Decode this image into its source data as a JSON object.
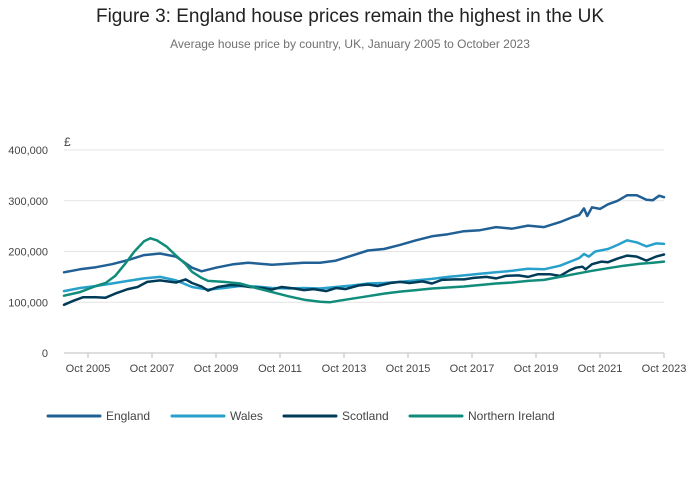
{
  "chart_data": {
    "type": "line",
    "title": "Figure 3: England house prices remain the highest in the UK",
    "subtitle": "Average house price by country, UK, January 2005 to October 2023",
    "ylabel": "£",
    "ylim": [
      0,
      400000
    ],
    "xlim": [
      2005.0,
      2023.75
    ],
    "yticks": [
      {
        "value": 0,
        "label": "0"
      },
      {
        "value": 100000,
        "label": "100,000"
      },
      {
        "value": 200000,
        "label": "200,000"
      },
      {
        "value": 300000,
        "label": "300,000"
      },
      {
        "value": 400000,
        "label": "400,000"
      }
    ],
    "xticks": [
      {
        "value": 2005.75,
        "label": "Oct 2005"
      },
      {
        "value": 2007.75,
        "label": "Oct 2007"
      },
      {
        "value": 2009.75,
        "label": "Oct 2009"
      },
      {
        "value": 2011.75,
        "label": "Oct 2011"
      },
      {
        "value": 2013.75,
        "label": "Oct 2013"
      },
      {
        "value": 2015.75,
        "label": "Oct 2015"
      },
      {
        "value": 2017.75,
        "label": "Oct 2017"
      },
      {
        "value": 2019.75,
        "label": "Oct 2019"
      },
      {
        "value": 2021.75,
        "label": "Oct 2021"
      },
      {
        "value": 2023.75,
        "label": "Oct 2023"
      }
    ],
    "series": [
      {
        "name": "England",
        "color": "#206095",
        "points": [
          [
            2005.0,
            159000
          ],
          [
            2005.5,
            165000
          ],
          [
            2006.0,
            169000
          ],
          [
            2006.5,
            175000
          ],
          [
            2007.0,
            183000
          ],
          [
            2007.5,
            193000
          ],
          [
            2008.0,
            196000
          ],
          [
            2008.5,
            190000
          ],
          [
            2009.0,
            168000
          ],
          [
            2009.3,
            161000
          ],
          [
            2009.75,
            168000
          ],
          [
            2010.3,
            175000
          ],
          [
            2010.75,
            178000
          ],
          [
            2011.5,
            174000
          ],
          [
            2012.0,
            176000
          ],
          [
            2012.5,
            178000
          ],
          [
            2013.0,
            178000
          ],
          [
            2013.5,
            182000
          ],
          [
            2014.0,
            192000
          ],
          [
            2014.5,
            202000
          ],
          [
            2015.0,
            205000
          ],
          [
            2015.5,
            213000
          ],
          [
            2016.0,
            222000
          ],
          [
            2016.5,
            230000
          ],
          [
            2017.0,
            234000
          ],
          [
            2017.5,
            240000
          ],
          [
            2018.0,
            242000
          ],
          [
            2018.5,
            248000
          ],
          [
            2019.0,
            245000
          ],
          [
            2019.5,
            251000
          ],
          [
            2020.0,
            248000
          ],
          [
            2020.5,
            258000
          ],
          [
            2020.9,
            268000
          ],
          [
            2021.1,
            272000
          ],
          [
            2021.25,
            285000
          ],
          [
            2021.35,
            270000
          ],
          [
            2021.5,
            287000
          ],
          [
            2021.75,
            284000
          ],
          [
            2022.0,
            293000
          ],
          [
            2022.3,
            300000
          ],
          [
            2022.6,
            311000
          ],
          [
            2022.9,
            311000
          ],
          [
            2023.2,
            302000
          ],
          [
            2023.4,
            301000
          ],
          [
            2023.6,
            310000
          ],
          [
            2023.75,
            307000
          ]
        ]
      },
      {
        "name": "Wales",
        "color": "#27a0cc",
        "points": [
          [
            2005.0,
            122000
          ],
          [
            2005.5,
            128000
          ],
          [
            2006.0,
            132000
          ],
          [
            2006.5,
            137000
          ],
          [
            2007.0,
            142000
          ],
          [
            2007.5,
            147000
          ],
          [
            2008.0,
            150000
          ],
          [
            2008.5,
            143000
          ],
          [
            2009.0,
            130000
          ],
          [
            2009.5,
            125000
          ],
          [
            2010.0,
            128000
          ],
          [
            2010.5,
            132000
          ],
          [
            2011.0,
            131000
          ],
          [
            2011.5,
            128000
          ],
          [
            2012.0,
            127000
          ],
          [
            2012.5,
            128000
          ],
          [
            2013.0,
            127000
          ],
          [
            2013.5,
            130000
          ],
          [
            2014.0,
            133000
          ],
          [
            2014.5,
            137000
          ],
          [
            2015.0,
            138000
          ],
          [
            2015.5,
            140000
          ],
          [
            2016.0,
            143000
          ],
          [
            2016.5,
            146000
          ],
          [
            2017.0,
            150000
          ],
          [
            2017.5,
            153000
          ],
          [
            2018.0,
            156000
          ],
          [
            2018.5,
            159000
          ],
          [
            2019.0,
            162000
          ],
          [
            2019.5,
            166000
          ],
          [
            2020.0,
            165000
          ],
          [
            2020.5,
            172000
          ],
          [
            2020.9,
            182000
          ],
          [
            2021.1,
            187000
          ],
          [
            2021.25,
            195000
          ],
          [
            2021.4,
            190000
          ],
          [
            2021.6,
            200000
          ],
          [
            2022.0,
            205000
          ],
          [
            2022.3,
            213000
          ],
          [
            2022.6,
            222000
          ],
          [
            2022.9,
            218000
          ],
          [
            2023.2,
            210000
          ],
          [
            2023.5,
            216000
          ],
          [
            2023.75,
            215000
          ]
        ]
      },
      {
        "name": "Scotland",
        "color": "#003c57",
        "points": [
          [
            2005.0,
            95000
          ],
          [
            2005.3,
            103000
          ],
          [
            2005.6,
            110000
          ],
          [
            2006.0,
            110000
          ],
          [
            2006.3,
            109000
          ],
          [
            2006.6,
            117000
          ],
          [
            2007.0,
            126000
          ],
          [
            2007.3,
            130000
          ],
          [
            2007.6,
            140000
          ],
          [
            2008.0,
            143000
          ],
          [
            2008.5,
            139000
          ],
          [
            2008.8,
            145000
          ],
          [
            2009.0,
            138000
          ],
          [
            2009.3,
            131000
          ],
          [
            2009.5,
            123000
          ],
          [
            2009.8,
            130000
          ],
          [
            2010.2,
            134000
          ],
          [
            2010.5,
            133000
          ],
          [
            2010.8,
            130000
          ],
          [
            2011.2,
            128000
          ],
          [
            2011.5,
            125000
          ],
          [
            2011.8,
            130000
          ],
          [
            2012.2,
            127000
          ],
          [
            2012.5,
            124000
          ],
          [
            2012.8,
            126000
          ],
          [
            2013.2,
            122000
          ],
          [
            2013.5,
            128000
          ],
          [
            2013.8,
            126000
          ],
          [
            2014.2,
            133000
          ],
          [
            2014.5,
            135000
          ],
          [
            2014.8,
            132000
          ],
          [
            2015.2,
            138000
          ],
          [
            2015.5,
            140000
          ],
          [
            2015.8,
            138000
          ],
          [
            2016.2,
            141000
          ],
          [
            2016.5,
            137000
          ],
          [
            2016.8,
            144000
          ],
          [
            2017.2,
            145000
          ],
          [
            2017.5,
            145000
          ],
          [
            2017.8,
            148000
          ],
          [
            2018.2,
            150000
          ],
          [
            2018.5,
            147000
          ],
          [
            2018.8,
            152000
          ],
          [
            2019.2,
            153000
          ],
          [
            2019.5,
            150000
          ],
          [
            2019.8,
            155000
          ],
          [
            2020.2,
            155000
          ],
          [
            2020.5,
            152000
          ],
          [
            2020.8,
            163000
          ],
          [
            2021.0,
            168000
          ],
          [
            2021.2,
            170000
          ],
          [
            2021.3,
            165000
          ],
          [
            2021.5,
            175000
          ],
          [
            2021.8,
            180000
          ],
          [
            2022.0,
            179000
          ],
          [
            2022.3,
            186000
          ],
          [
            2022.6,
            192000
          ],
          [
            2022.9,
            190000
          ],
          [
            2023.2,
            182000
          ],
          [
            2023.5,
            190000
          ],
          [
            2023.75,
            194000
          ]
        ]
      },
      {
        "name": "Northern Ireland",
        "color": "#118c7b",
        "points": [
          [
            2005.0,
            113000
          ],
          [
            2005.5,
            120000
          ],
          [
            2006.0,
            132000
          ],
          [
            2006.3,
            138000
          ],
          [
            2006.6,
            152000
          ],
          [
            2006.9,
            175000
          ],
          [
            2007.2,
            200000
          ],
          [
            2007.5,
            220000
          ],
          [
            2007.7,
            226000
          ],
          [
            2007.9,
            222000
          ],
          [
            2008.2,
            210000
          ],
          [
            2008.5,
            192000
          ],
          [
            2008.8,
            175000
          ],
          [
            2009.0,
            160000
          ],
          [
            2009.3,
            148000
          ],
          [
            2009.5,
            142000
          ],
          [
            2010.0,
            140000
          ],
          [
            2010.5,
            137000
          ],
          [
            2011.0,
            128000
          ],
          [
            2011.5,
            120000
          ],
          [
            2012.0,
            112000
          ],
          [
            2012.5,
            105000
          ],
          [
            2013.0,
            101000
          ],
          [
            2013.3,
            100000
          ],
          [
            2013.6,
            103000
          ],
          [
            2014.0,
            107000
          ],
          [
            2014.5,
            112000
          ],
          [
            2015.0,
            117000
          ],
          [
            2015.5,
            121000
          ],
          [
            2016.0,
            124000
          ],
          [
            2016.5,
            127000
          ],
          [
            2017.0,
            129000
          ],
          [
            2017.5,
            131000
          ],
          [
            2018.0,
            134000
          ],
          [
            2018.5,
            137000
          ],
          [
            2019.0,
            139000
          ],
          [
            2019.5,
            142000
          ],
          [
            2020.0,
            144000
          ],
          [
            2020.5,
            150000
          ],
          [
            2021.0,
            156000
          ],
          [
            2021.5,
            162000
          ],
          [
            2022.0,
            167000
          ],
          [
            2022.5,
            172000
          ],
          [
            2023.0,
            176000
          ],
          [
            2023.4,
            178000
          ],
          [
            2023.75,
            180000
          ]
        ]
      }
    ]
  }
}
